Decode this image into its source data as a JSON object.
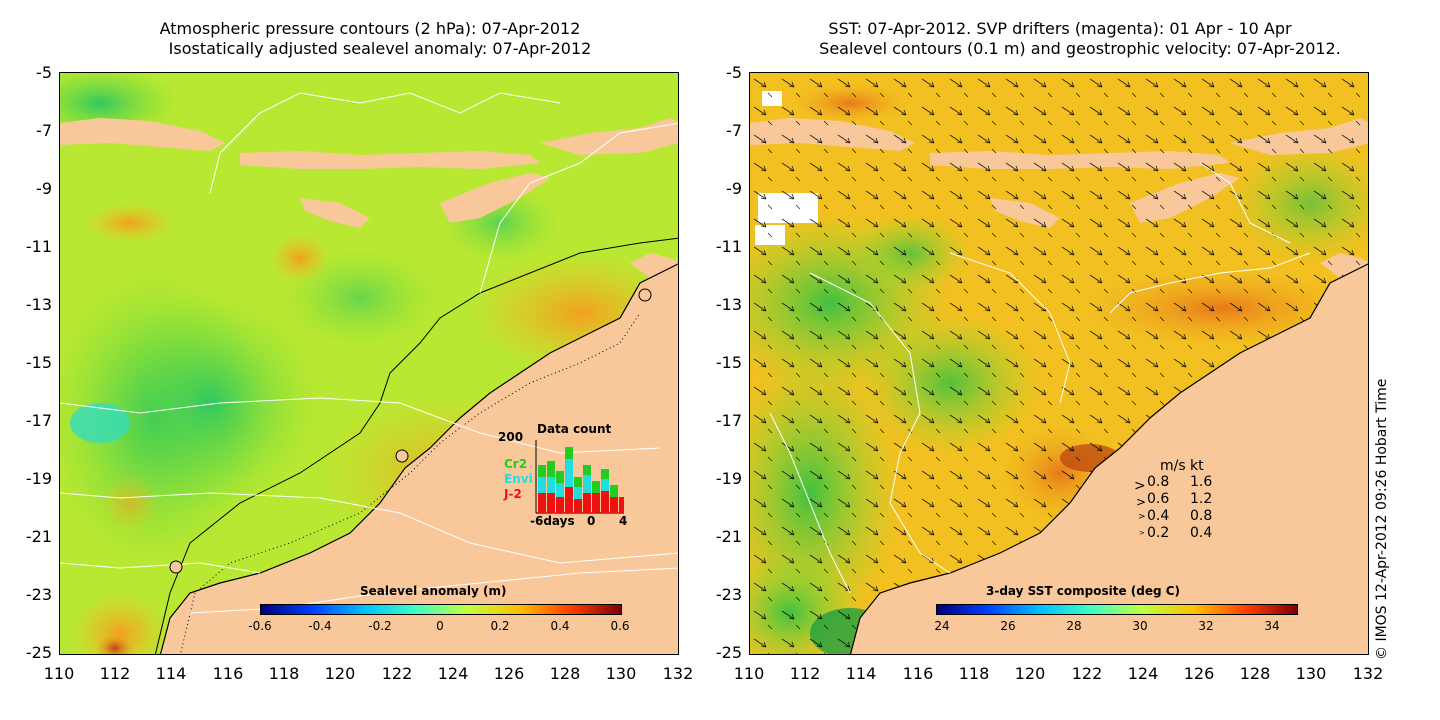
{
  "left_panel": {
    "title_line1": "Atmospheric pressure contours (2 hPa): 07-Apr-2012",
    "title_line2": "Isostatically adjusted sealevel anomaly: 07-Apr-2012",
    "colorbar": {
      "label": "Sealevel anomaly (m)",
      "ticks": [
        "-0.6",
        "-0.4",
        "-0.2",
        "0",
        "0.2",
        "0.4",
        "0.6"
      ]
    },
    "data_count": {
      "title": "Data count",
      "ymax_label": "200",
      "legend": [
        {
          "name": "Cr2",
          "color": "#22cc22"
        },
        {
          "name": "Envi",
          "color": "#22dddd"
        },
        {
          "name": "J-2",
          "color": "#ee1111"
        }
      ],
      "x_labels": [
        "-6days",
        "0",
        "4"
      ]
    }
  },
  "right_panel": {
    "title_line1": "SST: 07-Apr-2012. SVP drifters (magenta): 01 Apr - 10 Apr",
    "title_line2": "Sealevel contours (0.1 m) and geostrophic velocity: 07-Apr-2012.",
    "colorbar": {
      "label": "3-day SST composite (deg C)",
      "ticks": [
        "24",
        "26",
        "28",
        "30",
        "32",
        "34"
      ]
    },
    "velocity_legend": {
      "header_ms": "m/s",
      "header_kt": "kt",
      "rows": [
        {
          "ms": "0.8",
          "kt": "1.6"
        },
        {
          "ms": "0.6",
          "kt": "1.2"
        },
        {
          "ms": "0.4",
          "kt": "0.8"
        },
        {
          "ms": "0.2",
          "kt": "0.4"
        }
      ]
    }
  },
  "axes": {
    "y_ticks": [
      "-5",
      "-7",
      "-9",
      "-11",
      "-13",
      "-15",
      "-17",
      "-19",
      "-21",
      "-23",
      "-25"
    ],
    "x_ticks": [
      "110",
      "112",
      "114",
      "116",
      "118",
      "120",
      "122",
      "124",
      "126",
      "128",
      "130",
      "132"
    ]
  },
  "copyright": "© IMOS 12-Apr-2012 09:26 Hobart Time",
  "colors": {
    "land": "#f9c89a",
    "sla_cmap": [
      "#00007f",
      "#0040ff",
      "#00c0ff",
      "#40ffbf",
      "#bfff40",
      "#ffc000",
      "#ff4000",
      "#7f0000"
    ],
    "sst_cmap": [
      "#00007f",
      "#0040ff",
      "#00c0ff",
      "#40ffbf",
      "#bfff40",
      "#ffc000",
      "#ff4000",
      "#7f0000"
    ]
  }
}
